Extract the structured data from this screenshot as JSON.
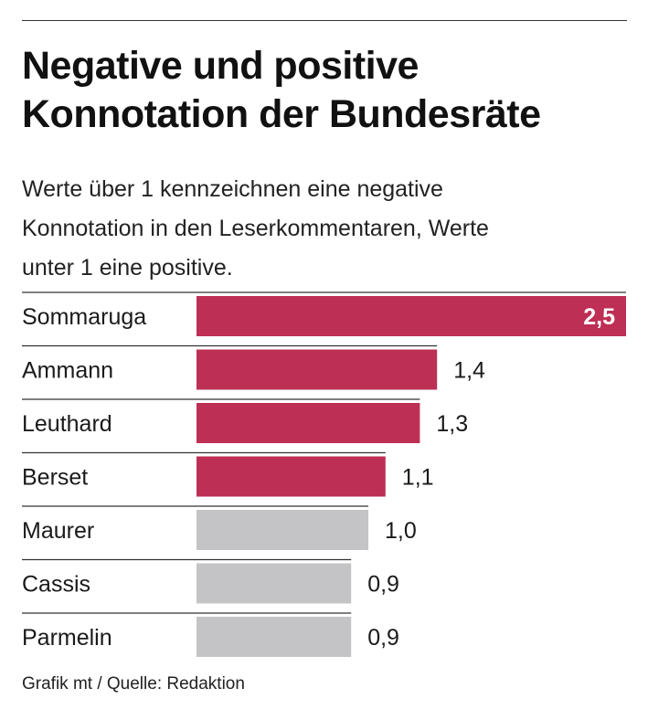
{
  "title_lines": [
    "Negative und positive",
    "Konnotation der Bundesräte"
  ],
  "subtitle_lines": [
    "Werte über 1 kennzeichnen eine negative",
    "Konnotation in den Leserkommentaren, Werte",
    "unter 1 eine positive."
  ],
  "footer": "Grafik mt / Quelle: Redaktion",
  "colors": {
    "negative": "#be2f55",
    "neutral": "#c4c4c6",
    "rule": "#333333",
    "highlight_label": "#ffffff",
    "text": "#1a1a1a"
  },
  "chart_data": {
    "type": "bar",
    "orientation": "horizontal",
    "title": "Negative und positive Konnotation der Bundesräte",
    "categories": [
      "Sommaruga",
      "Ammann",
      "Leuthard",
      "Berset",
      "Maurer",
      "Cassis",
      "Parmelin"
    ],
    "values": [
      2.5,
      1.4,
      1.3,
      1.1,
      1.0,
      0.9,
      0.9
    ],
    "value_labels": [
      "2,5",
      "1,4",
      "1,3",
      "1,1",
      "1,0",
      "0,9",
      "0,9"
    ],
    "xlim": [
      0,
      2.5
    ],
    "threshold": 1.0,
    "highlight_first_label_inside": true,
    "xlabel": "",
    "ylabel": ""
  }
}
